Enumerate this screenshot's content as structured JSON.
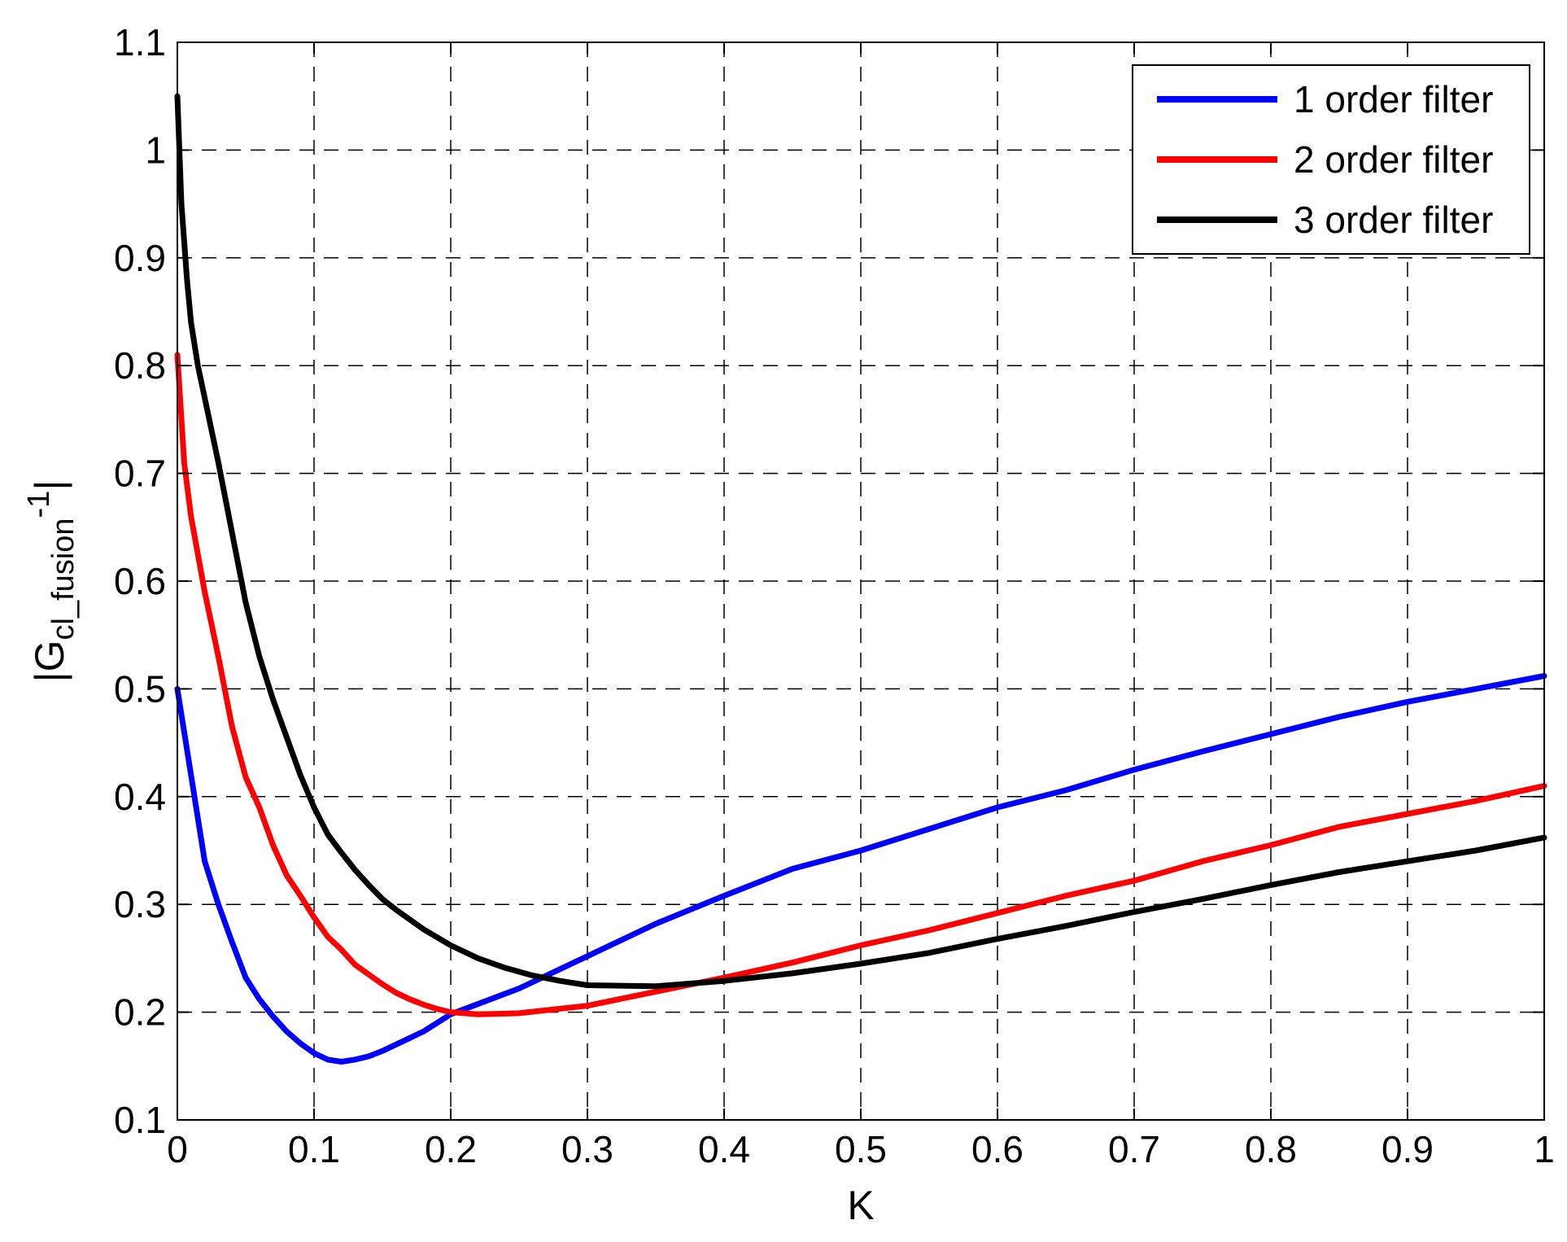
{
  "chart_data": {
    "type": "line",
    "title": "",
    "xlabel": "K",
    "ylabel": {
      "prefix": "|G",
      "subscript": "cl_fusion",
      "middle": "-1",
      "suffix": "|"
    },
    "xlim": [
      0,
      1
    ],
    "ylim": [
      0.1,
      1.1
    ],
    "xticks": [
      "0",
      "0.1",
      "0.2",
      "0.3",
      "0.4",
      "0.5",
      "0.6",
      "0.7",
      "0.8",
      "0.9",
      "1"
    ],
    "yticks": [
      "0.1",
      "0.2",
      "0.3",
      "0.4",
      "0.5",
      "0.6",
      "0.7",
      "0.8",
      "0.9",
      "1",
      "1.1"
    ],
    "grid": true,
    "legend_position": "top-right",
    "series": [
      {
        "name": "1 order filter",
        "color": "#0000ff",
        "x": [
          0,
          0.01,
          0.02,
          0.03,
          0.04,
          0.05,
          0.06,
          0.07,
          0.08,
          0.09,
          0.1,
          0.11,
          0.12,
          0.13,
          0.14,
          0.15,
          0.16,
          0.17,
          0.18,
          0.19,
          0.2,
          0.25,
          0.3,
          0.35,
          0.4,
          0.45,
          0.5,
          0.55,
          0.6,
          0.65,
          0.7,
          0.75,
          0.8,
          0.85,
          0.9,
          0.95,
          1.0
        ],
        "values": [
          0.5,
          0.42,
          0.34,
          0.3,
          0.265,
          0.232,
          0.212,
          0.196,
          0.182,
          0.171,
          0.162,
          0.156,
          0.154,
          0.156,
          0.159,
          0.164,
          0.17,
          0.176,
          0.182,
          0.19,
          0.198,
          0.222,
          0.252,
          0.282,
          0.308,
          0.333,
          0.35,
          0.37,
          0.39,
          0.406,
          0.425,
          0.442,
          0.458,
          0.474,
          0.488,
          0.5,
          0.512
        ]
      },
      {
        "name": "2 order filter",
        "color": "#ff0000",
        "x": [
          0,
          0.005,
          0.01,
          0.02,
          0.03,
          0.04,
          0.05,
          0.06,
          0.07,
          0.08,
          0.09,
          0.1,
          0.11,
          0.12,
          0.13,
          0.14,
          0.15,
          0.16,
          0.17,
          0.18,
          0.19,
          0.2,
          0.22,
          0.25,
          0.3,
          0.35,
          0.4,
          0.45,
          0.5,
          0.55,
          0.6,
          0.65,
          0.7,
          0.75,
          0.8,
          0.85,
          0.9,
          0.95,
          1.0
        ],
        "values": [
          0.81,
          0.71,
          0.66,
          0.59,
          0.53,
          0.465,
          0.418,
          0.39,
          0.355,
          0.327,
          0.308,
          0.288,
          0.27,
          0.258,
          0.244,
          0.235,
          0.226,
          0.218,
          0.212,
          0.207,
          0.203,
          0.2,
          0.198,
          0.199,
          0.206,
          0.219,
          0.232,
          0.246,
          0.262,
          0.276,
          0.292,
          0.308,
          0.322,
          0.34,
          0.355,
          0.372,
          0.384,
          0.396,
          0.41
        ]
      },
      {
        "name": "3 order filter",
        "color": "#000000",
        "x": [
          0,
          0.003,
          0.007,
          0.01,
          0.015,
          0.02,
          0.03,
          0.04,
          0.05,
          0.06,
          0.07,
          0.08,
          0.09,
          0.1,
          0.11,
          0.12,
          0.13,
          0.14,
          0.15,
          0.16,
          0.18,
          0.2,
          0.22,
          0.24,
          0.26,
          0.28,
          0.3,
          0.35,
          0.4,
          0.45,
          0.5,
          0.55,
          0.6,
          0.65,
          0.7,
          0.75,
          0.8,
          0.85,
          0.9,
          0.95,
          1.0
        ],
        "values": [
          1.05,
          0.95,
          0.88,
          0.84,
          0.8,
          0.77,
          0.71,
          0.645,
          0.58,
          0.53,
          0.49,
          0.455,
          0.42,
          0.39,
          0.365,
          0.348,
          0.332,
          0.318,
          0.305,
          0.295,
          0.277,
          0.262,
          0.25,
          0.241,
          0.234,
          0.229,
          0.225,
          0.224,
          0.229,
          0.236,
          0.245,
          0.255,
          0.268,
          0.28,
          0.293,
          0.305,
          0.318,
          0.33,
          0.34,
          0.35,
          0.362
        ]
      }
    ]
  }
}
